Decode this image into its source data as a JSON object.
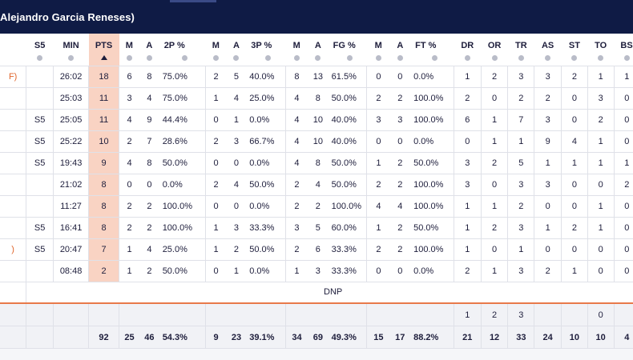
{
  "header": {
    "title": "Alejandro Garcia Reneses)"
  },
  "columns": [
    "",
    "S5",
    "MIN",
    "PTS",
    "M",
    "A",
    "2P %",
    "M",
    "A",
    "3P %",
    "M",
    "A",
    "FG %",
    "M",
    "A",
    "FT %",
    "DR",
    "OR",
    "TR",
    "AS",
    "ST",
    "TO",
    "BS"
  ],
  "rows": [
    [
      "F)",
      "",
      "26:02",
      "18",
      "6",
      "8",
      "75.0%",
      "2",
      "5",
      "40.0%",
      "8",
      "13",
      "61.5%",
      "0",
      "0",
      "0.0%",
      "1",
      "2",
      "3",
      "3",
      "2",
      "1",
      "1"
    ],
    [
      "",
      "",
      "25:03",
      "11",
      "3",
      "4",
      "75.0%",
      "1",
      "4",
      "25.0%",
      "4",
      "8",
      "50.0%",
      "2",
      "2",
      "100.0%",
      "2",
      "0",
      "2",
      "2",
      "0",
      "3",
      "0"
    ],
    [
      "",
      "S5",
      "25:05",
      "11",
      "4",
      "9",
      "44.4%",
      "0",
      "1",
      "0.0%",
      "4",
      "10",
      "40.0%",
      "3",
      "3",
      "100.0%",
      "6",
      "1",
      "7",
      "3",
      "0",
      "2",
      "0"
    ],
    [
      "",
      "S5",
      "25:22",
      "10",
      "2",
      "7",
      "28.6%",
      "2",
      "3",
      "66.7%",
      "4",
      "10",
      "40.0%",
      "0",
      "0",
      "0.0%",
      "0",
      "1",
      "1",
      "9",
      "4",
      "1",
      "0"
    ],
    [
      "",
      "S5",
      "19:43",
      "9",
      "4",
      "8",
      "50.0%",
      "0",
      "0",
      "0.0%",
      "4",
      "8",
      "50.0%",
      "1",
      "2",
      "50.0%",
      "3",
      "2",
      "5",
      "1",
      "1",
      "1",
      "1"
    ],
    [
      "",
      "",
      "21:02",
      "8",
      "0",
      "0",
      "0.0%",
      "2",
      "4",
      "50.0%",
      "2",
      "4",
      "50.0%",
      "2",
      "2",
      "100.0%",
      "3",
      "0",
      "3",
      "3",
      "0",
      "0",
      "2"
    ],
    [
      "",
      "",
      "11:27",
      "8",
      "2",
      "2",
      "100.0%",
      "0",
      "0",
      "0.0%",
      "2",
      "2",
      "100.0%",
      "4",
      "4",
      "100.0%",
      "1",
      "1",
      "2",
      "0",
      "0",
      "1",
      "0"
    ],
    [
      "",
      "S5",
      "16:41",
      "8",
      "2",
      "2",
      "100.0%",
      "1",
      "3",
      "33.3%",
      "3",
      "5",
      "60.0%",
      "1",
      "2",
      "50.0%",
      "1",
      "2",
      "3",
      "1",
      "2",
      "1",
      "0"
    ],
    [
      ")",
      "S5",
      "20:47",
      "7",
      "1",
      "4",
      "25.0%",
      "1",
      "2",
      "50.0%",
      "2",
      "6",
      "33.3%",
      "2",
      "2",
      "100.0%",
      "1",
      "0",
      "1",
      "0",
      "0",
      "0",
      "0"
    ],
    [
      "",
      "",
      "08:48",
      "2",
      "1",
      "2",
      "50.0%",
      "0",
      "1",
      "0.0%",
      "1",
      "3",
      "33.3%",
      "0",
      "0",
      "0.0%",
      "2",
      "1",
      "3",
      "2",
      "1",
      "0",
      "0"
    ]
  ],
  "dnp_label": "DNP",
  "team_row": [
    "",
    "",
    "",
    "",
    "",
    "",
    "",
    "",
    "",
    "",
    "",
    "",
    "",
    "",
    "",
    "",
    "1",
    "2",
    "3",
    "",
    "",
    "0",
    ""
  ],
  "totals_row": [
    "",
    "",
    "",
    "92",
    "25",
    "46",
    "54.3%",
    "9",
    "23",
    "39.1%",
    "34",
    "69",
    "49.3%",
    "15",
    "17",
    "88.2%",
    "21",
    "12",
    "33",
    "24",
    "10",
    "10",
    "4"
  ]
}
